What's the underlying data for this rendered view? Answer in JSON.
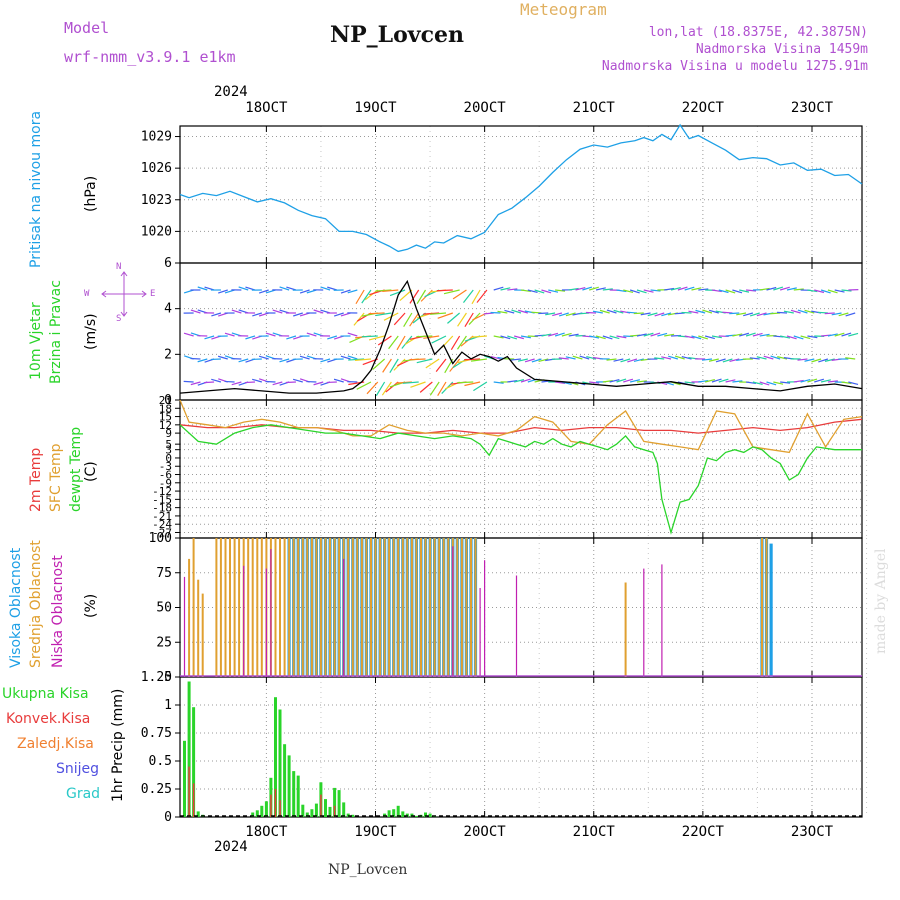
{
  "header": {
    "model_label": "Model",
    "model_name": "wrf-nmm_v3.9.1  e1km",
    "station": "NP_Lovcen",
    "product": "Meteogram",
    "lonlat": "lon,lat (18.8375E, 42.3875N)",
    "altitude": "Nadmorska Visina 1459m",
    "model_altitude": "Nadmorska Visina u modelu 1275.91m",
    "footer_station": "NP_Lovcen",
    "watermark": "made by Angel"
  },
  "time_axis": {
    "year": "2024",
    "days": [
      "18OCT",
      "19OCT",
      "20OCT",
      "21OCT",
      "22OCT",
      "23OCT"
    ]
  },
  "colors": {
    "pressure": "#1ea0e6",
    "temp2m": "#e83c3c",
    "sfc_temp": "#e0a030",
    "dewpoint": "#2ad42a",
    "high_cloud": "#1ea0e6",
    "mid_cloud": "#e0a030",
    "low_cloud": "#c020b0",
    "precip_total": "#2ad42a",
    "precip_conv": "#e83c3c",
    "labels_purple": "#b050d0"
  },
  "panels": {
    "pressure": {
      "ylabel": "Pritisak na nivou mora",
      "unit": "(hPa)"
    },
    "wind": {
      "ylabel1": "10m Vjetar",
      "ylabel2": "Brzina i Pravac",
      "unit": "(m/s)",
      "compass": {
        "n": "N",
        "s": "S",
        "e": "E",
        "w": "W"
      }
    },
    "temp": {
      "ylabel1": "2m Temp",
      "ylabel2": "SFC Temp",
      "ylabel3": "dewpt Temp",
      "unit": "(C)"
    },
    "cloud": {
      "ylabel1": "Visoka Oblacnost",
      "ylabel2": "Srednja Oblacnost",
      "ylabel3": "Niska Oblacnost",
      "unit": "(%)"
    },
    "precip": {
      "legend": [
        "Ukupna Kisa",
        "Konvek.Kisa",
        "Zaledj.Kisa",
        "Snijeg",
        "Grad"
      ],
      "unit": "1hr Precip (mm)"
    }
  },
  "chart_data": [
    {
      "type": "line",
      "name": "pressure",
      "x_unit": "hours since 17OCT 12:00",
      "xlim": [
        0,
        150
      ],
      "ylim": [
        1017,
        1030
      ],
      "yticks": [
        1020,
        1023,
        1026,
        1029
      ],
      "tick_labels": [
        "1020",
        "1023",
        "1026",
        "1029"
      ],
      "series": [
        {
          "x": [
            0,
            2,
            5,
            8,
            11,
            14,
            17,
            20,
            23,
            26,
            29,
            32,
            35,
            38,
            41,
            44,
            46,
            48,
            50,
            52,
            54,
            56,
            58,
            61,
            64,
            67,
            70,
            73,
            76,
            79,
            82,
            85,
            88,
            91,
            94,
            97,
            100,
            102,
            104,
            106,
            108,
            110,
            112,
            114,
            117,
            120,
            123,
            126,
            129,
            132,
            135,
            138,
            141,
            144,
            147,
            150
          ],
          "y": [
            1023.5,
            1023.2,
            1023.6,
            1023.4,
            1023.8,
            1023.3,
            1022.8,
            1023.1,
            1022.7,
            1022.0,
            1021.5,
            1021.2,
            1020.0,
            1020.0,
            1019.7,
            1019.0,
            1018.6,
            1018.1,
            1018.3,
            1018.7,
            1018.4,
            1019.0,
            1018.9,
            1019.6,
            1019.3,
            1019.9,
            1021.6,
            1022.2,
            1023.2,
            1024.3,
            1025.6,
            1026.8,
            1027.8,
            1028.2,
            1028.0,
            1028.4,
            1028.6,
            1028.9,
            1028.6,
            1029.2,
            1028.7,
            1030.1,
            1028.8,
            1029.1,
            1028.4,
            1027.7,
            1026.8,
            1027.0,
            1026.9,
            1026.3,
            1026.5,
            1025.8,
            1025.9,
            1025.3,
            1025.4,
            1024.5
          ]
        }
      ]
    },
    {
      "type": "line",
      "name": "wind",
      "x_unit": "hours since 17OCT 12:00",
      "xlim": [
        0,
        150
      ],
      "ylim": [
        0,
        6
      ],
      "yticks": [
        0,
        2,
        4,
        6
      ],
      "tick_labels": [
        "0",
        "2",
        "4",
        "6"
      ],
      "series": [
        {
          "x": [
            0,
            6,
            12,
            18,
            24,
            30,
            36,
            38,
            40,
            42,
            44,
            46,
            48,
            50,
            52,
            54,
            56,
            58,
            60,
            62,
            64,
            66,
            68,
            70,
            72,
            74,
            78,
            84,
            90,
            96,
            102,
            108,
            114,
            120,
            126,
            132,
            138,
            144,
            150
          ],
          "y": [
            0.3,
            0.4,
            0.5,
            0.4,
            0.3,
            0.3,
            0.4,
            0.5,
            0.8,
            1.3,
            2.2,
            3.3,
            4.6,
            5.2,
            4.0,
            3.0,
            2.0,
            2.4,
            1.6,
            2.1,
            1.8,
            2.0,
            1.9,
            1.7,
            1.9,
            1.4,
            0.9,
            0.8,
            0.7,
            0.6,
            0.7,
            0.8,
            0.6,
            0.6,
            0.5,
            0.4,
            0.6,
            0.7,
            0.5
          ]
        }
      ]
    },
    {
      "type": "line",
      "name": "temperature",
      "x_unit": "hours since 17OCT 12:00",
      "xlim": [
        0,
        150
      ],
      "ylim": [
        -29,
        21
      ],
      "yticks": [
        -27,
        -24,
        -21,
        -18,
        -15,
        -12,
        -9,
        -6,
        -3,
        0,
        3,
        5,
        9,
        12,
        15,
        18,
        21
      ],
      "tick_labels": [
        "-27",
        "-24",
        "-21",
        "-18",
        "-15",
        "-12",
        "-9",
        "-6",
        "-3",
        "0",
        "3",
        "5",
        "9",
        "12",
        "15",
        "18",
        "21"
      ],
      "series": [
        {
          "x": [
            0,
            6,
            12,
            18,
            24,
            30,
            36,
            42,
            48,
            54,
            60,
            66,
            72,
            78,
            84,
            90,
            96,
            102,
            108,
            114,
            120,
            126,
            132,
            138,
            144,
            150
          ],
          "y": [
            12,
            11,
            11,
            12,
            11,
            11,
            10,
            10,
            9,
            9,
            10,
            9,
            9,
            11,
            10,
            11,
            11,
            10,
            10,
            9,
            10,
            11,
            10,
            11,
            13,
            14
          ]
        },
        {
          "x": [
            0,
            2,
            6,
            10,
            14,
            18,
            22,
            26,
            30,
            34,
            38,
            42,
            46,
            50,
            54,
            58,
            62,
            66,
            70,
            74,
            78,
            82,
            86,
            90,
            94,
            98,
            102,
            106,
            110,
            114,
            118,
            122,
            126,
            130,
            134,
            138,
            142,
            146,
            150
          ],
          "y": [
            21,
            13,
            12,
            11,
            13,
            14,
            13,
            11,
            11,
            10,
            8,
            8,
            12,
            10,
            9,
            9,
            8,
            9,
            8,
            10,
            15,
            13,
            6,
            5,
            12,
            17,
            6,
            5,
            4,
            3,
            17,
            16,
            4,
            3,
            2,
            16,
            4,
            14,
            15
          ]
        },
        {
          "x": [
            0,
            4,
            8,
            12,
            16,
            20,
            24,
            28,
            32,
            36,
            40,
            44,
            48,
            52,
            56,
            60,
            64,
            66,
            68,
            70,
            72,
            74,
            76,
            78,
            80,
            82,
            84,
            86,
            88,
            90,
            92,
            94,
            96,
            98,
            100,
            102,
            104,
            105,
            106,
            108,
            110,
            112,
            114,
            116,
            118,
            120,
            122,
            124,
            126,
            128,
            130,
            132,
            134,
            136,
            138,
            140,
            144,
            150
          ],
          "y": [
            12,
            6,
            5,
            9,
            11,
            12,
            11,
            10,
            9,
            9,
            8,
            7,
            9,
            8,
            7,
            8,
            7,
            5,
            1,
            7,
            6,
            5,
            4,
            6,
            5,
            7,
            5,
            4,
            6,
            5,
            4,
            3,
            5,
            8,
            4,
            3,
            2,
            -2,
            -15,
            -27,
            -16,
            -15,
            -10,
            0,
            -1,
            2,
            3,
            2,
            4,
            3,
            0,
            -2,
            -8,
            -6,
            0,
            4,
            3,
            3
          ]
        }
      ]
    },
    {
      "type": "bar",
      "name": "cloud_cover",
      "x_unit": "hours since 17OCT 12:00",
      "xlim": [
        0,
        150
      ],
      "ylim": [
        0,
        100
      ],
      "yticks": [
        0,
        25,
        50,
        75,
        100
      ],
      "tick_labels": [
        "0",
        "25",
        "50",
        "75",
        "100"
      ],
      "series": [
        {
          "name": "high",
          "x": [
            24,
            25,
            26,
            27,
            28,
            29,
            30,
            31,
            32,
            33,
            34,
            35,
            36,
            37,
            38,
            39,
            40,
            41,
            42,
            43,
            44,
            45,
            46,
            47,
            48,
            49,
            50,
            51,
            52,
            53,
            54,
            55,
            56,
            57,
            58,
            59,
            60,
            61,
            62,
            63,
            64,
            65,
            128,
            129,
            130
          ],
          "y": [
            100,
            100,
            100,
            100,
            100,
            100,
            100,
            100,
            100,
            100,
            100,
            100,
            100,
            100,
            100,
            100,
            100,
            100,
            100,
            100,
            100,
            100,
            100,
            100,
            100,
            100,
            100,
            100,
            100,
            100,
            100,
            100,
            100,
            100,
            100,
            100,
            100,
            100,
            100,
            100,
            100,
            100,
            100,
            100,
            96
          ]
        },
        {
          "name": "mid",
          "x": [
            2,
            3,
            4,
            5,
            8,
            9,
            10,
            11,
            12,
            13,
            14,
            15,
            16,
            17,
            18,
            19,
            20,
            21,
            22,
            23,
            24,
            25,
            26,
            27,
            28,
            29,
            30,
            31,
            32,
            33,
            34,
            35,
            36,
            37,
            38,
            39,
            40,
            41,
            42,
            43,
            44,
            45,
            46,
            47,
            48,
            49,
            50,
            51,
            52,
            53,
            54,
            55,
            56,
            57,
            58,
            59,
            60,
            61,
            62,
            63,
            64,
            65,
            98,
            128,
            129
          ],
          "y": [
            85,
            100,
            70,
            60,
            100,
            100,
            100,
            100,
            100,
            100,
            100,
            100,
            100,
            100,
            100,
            100,
            100,
            100,
            100,
            100,
            100,
            100,
            100,
            100,
            100,
            100,
            100,
            100,
            100,
            100,
            100,
            100,
            100,
            100,
            100,
            100,
            100,
            100,
            100,
            100,
            100,
            100,
            100,
            100,
            100,
            100,
            100,
            100,
            100,
            100,
            100,
            100,
            100,
            100,
            100,
            100,
            100,
            100,
            100,
            100,
            100,
            100,
            68,
            100,
            100
          ]
        },
        {
          "name": "low",
          "x": [
            1,
            14,
            19,
            20,
            36,
            60,
            66,
            67,
            74,
            102,
            106
          ],
          "y": [
            72,
            80,
            78,
            92,
            85,
            94,
            64,
            84,
            73,
            78,
            81
          ]
        }
      ]
    },
    {
      "type": "bar",
      "name": "precipitation",
      "x_unit": "hours since 17OCT 12:00",
      "xlim": [
        0,
        150
      ],
      "ylim": [
        0,
        1.25
      ],
      "yticks": [
        0,
        0.25,
        0.5,
        0.75,
        1,
        1.25
      ],
      "tick_labels": [
        "0",
        "0.25",
        "0.5",
        "0.75",
        "1",
        "1.25"
      ],
      "series": [
        {
          "name": "total",
          "x": [
            1,
            2,
            3,
            4,
            5,
            16,
            17,
            18,
            19,
            20,
            21,
            22,
            23,
            24,
            25,
            26,
            27,
            28,
            29,
            30,
            31,
            32,
            33,
            34,
            35,
            36,
            37,
            38,
            45,
            46,
            47,
            48,
            49,
            50,
            51,
            52,
            53,
            54,
            55,
            56
          ],
          "y": [
            0.68,
            1.21,
            0.98,
            0.05,
            0.02,
            0.04,
            0.06,
            0.1,
            0.14,
            0.35,
            1.07,
            0.96,
            0.65,
            0.55,
            0.41,
            0.37,
            0.11,
            0.04,
            0.07,
            0.12,
            0.31,
            0.16,
            0.09,
            0.26,
            0.24,
            0.13,
            0.03,
            0.02,
            0.03,
            0.06,
            0.07,
            0.1,
            0.05,
            0.03,
            0.03,
            0.01,
            0.02,
            0.04,
            0.03,
            0.01
          ]
        },
        {
          "name": "convective",
          "x": [
            2,
            3,
            20,
            21,
            22,
            31,
            34
          ],
          "y": [
            0.45,
            0.3,
            0.2,
            0.25,
            0.15,
            0.2,
            0.1
          ]
        }
      ]
    }
  ]
}
